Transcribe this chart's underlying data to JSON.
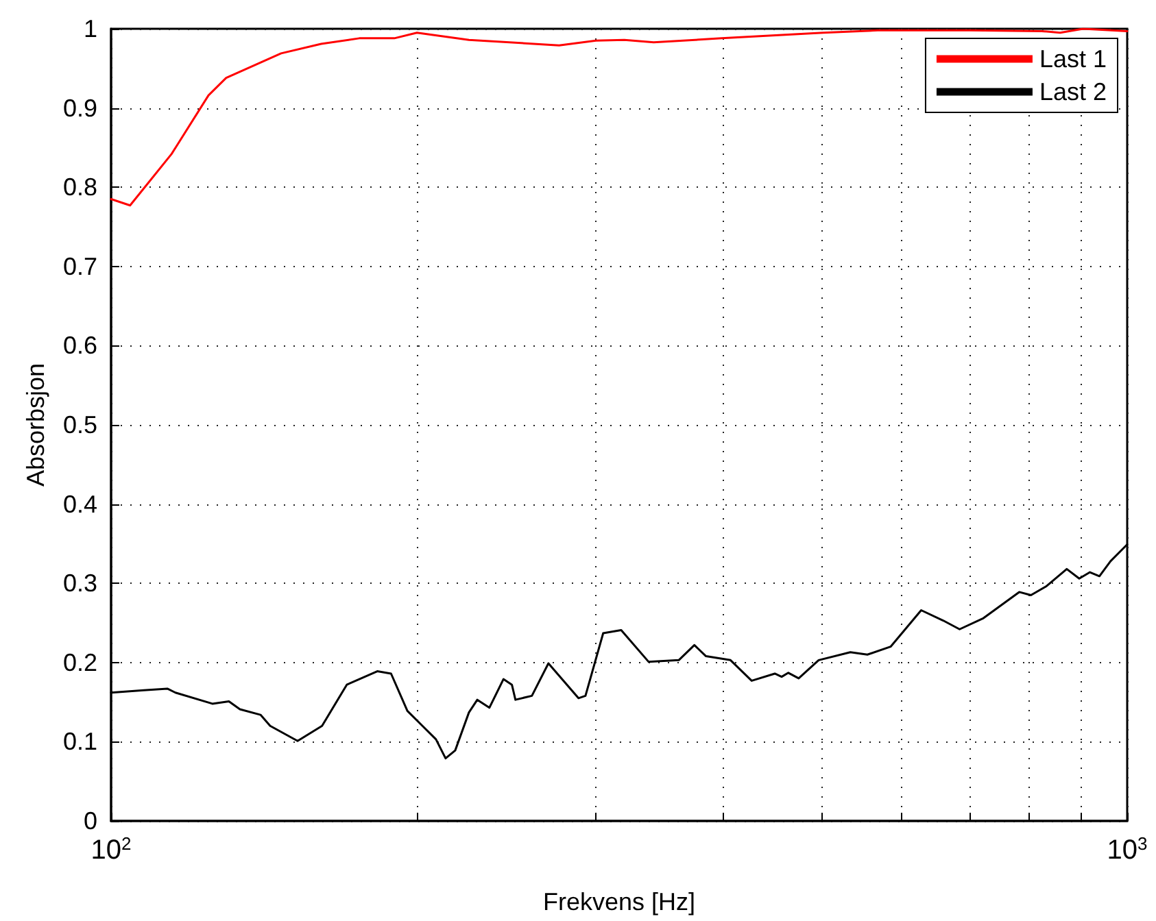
{
  "chart_data": {
    "type": "line",
    "xlabel": "Frekvens [Hz]",
    "ylabel": "Absorbsjon",
    "log": "x",
    "grid": true,
    "legend": "top right",
    "marker": "none",
    "line_style": "solid",
    "xlim": [
      100,
      1000
    ],
    "xticks": [
      {
        "value": 100,
        "label": "10$^{2}$"
      },
      {
        "value": 200,
        "label": null
      },
      {
        "value": 300,
        "label": null
      },
      {
        "value": 400,
        "label": null
      },
      {
        "value": 500,
        "label": null
      },
      {
        "value": 600,
        "label": null
      },
      {
        "value": 700,
        "label": null
      },
      {
        "value": 800,
        "label": null
      },
      {
        "value": 900,
        "label": null
      },
      {
        "value": 1000,
        "label": "10$^{3}$"
      }
    ],
    "ylim": [
      0,
      1
    ],
    "yticks": [
      0,
      0.1,
      0.2,
      0.3,
      0.4,
      0.5,
      0.6,
      0.7,
      0.8,
      0.9,
      1
    ],
    "series": [
      {
        "name": "Last 1",
        "color": "#ff0000",
        "x": [
          100,
          104.4,
          114.7,
          124.7,
          129.8,
          147,
          161,
          175.5,
          190,
          200,
          225,
          276,
          300,
          320,
          342,
          399,
          502,
          568,
          700,
          824,
          859,
          905,
          1000
        ],
        "values": [
          0.785,
          0.777,
          0.842,
          0.916,
          0.938,
          0.969,
          0.981,
          0.988,
          0.988,
          0.995,
          0.986,
          0.979,
          0.985,
          0.986,
          0.983,
          0.988,
          0.995,
          0.998,
          0.998,
          0.997,
          0.995,
          1.0,
          0.997
        ]
      },
      {
        "name": "Last 2",
        "color": "#000000",
        "x": [
          100,
          107.7,
          113.6,
          115.7,
          125.8,
          130.6,
          133.9,
          140.3,
          143.4,
          152.6,
          161.3,
          170.6,
          182.8,
          188.6,
          195.7,
          202.5,
          208.8,
          213.4,
          218.1,
          225,
          229.3,
          235.7,
          243.3,
          248,
          250,
          259.5,
          269.4,
          288.4,
          293,
          305,
          317.7,
          338,
          362,
          375,
          385,
          407,
          427,
          450,
          457,
          464,
          475,
          497,
          534,
          555,
          585,
          627,
          659,
          684,
          722,
          783,
          804,
          832,
          872,
          897,
          919,
          939,
          963,
          1000
        ],
        "values": [
          0.162,
          0.165,
          0.167,
          0.162,
          0.148,
          0.151,
          0.141,
          0.134,
          0.12,
          0.101,
          0.12,
          0.172,
          0.189,
          0.186,
          0.139,
          0.12,
          0.103,
          0.079,
          0.089,
          0.137,
          0.153,
          0.143,
          0.179,
          0.172,
          0.153,
          0.158,
          0.199,
          0.155,
          0.158,
          0.237,
          0.241,
          0.201,
          0.203,
          0.222,
          0.208,
          0.203,
          0.177,
          0.186,
          0.182,
          0.187,
          0.18,
          0.203,
          0.213,
          0.21,
          0.22,
          0.266,
          0.253,
          0.242,
          0.256,
          0.289,
          0.285,
          0.296,
          0.318,
          0.306,
          0.314,
          0.309,
          0.328,
          0.349
        ]
      }
    ]
  }
}
